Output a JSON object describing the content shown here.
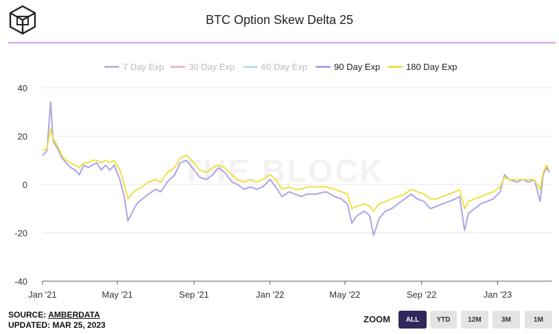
{
  "page": {
    "title": "BTC Option Skew Delta 25",
    "source_prefix": "SOURCE: ",
    "source_name": "AMBERDATA",
    "updated": "UPDATED: MAR 25, 2023",
    "watermark": "THE BLOCK"
  },
  "zoom": {
    "label": "ZOOM",
    "buttons": [
      "ALL",
      "YTD",
      "12M",
      "3M",
      "1M"
    ],
    "active": "ALL"
  },
  "chart_data": {
    "type": "line",
    "title": "BTC Option Skew Delta 25",
    "ylim": [
      -40,
      40
    ],
    "y_ticks": [
      40,
      20,
      0,
      -20,
      -40
    ],
    "xlim": [
      "2021-01-01",
      "2023-03-25"
    ],
    "x_ticks": [
      {
        "date": "2021-01-01",
        "label": "Jan '21"
      },
      {
        "date": "2021-05-01",
        "label": "May '21"
      },
      {
        "date": "2021-09-01",
        "label": "Sep '21"
      },
      {
        "date": "2022-01-01",
        "label": "Jan '22"
      },
      {
        "date": "2022-05-01",
        "label": "May '22"
      },
      {
        "date": "2022-09-01",
        "label": "Sep '22"
      },
      {
        "date": "2023-01-01",
        "label": "Jan '23"
      }
    ],
    "grid": true,
    "legend_position": "top",
    "series": [
      {
        "name": "7 Day Exp",
        "color": "#bcb8d4",
        "visible": false,
        "values": []
      },
      {
        "name": "30 Day Exp",
        "color": "#f4b8c8",
        "visible": false,
        "values": []
      },
      {
        "name": "60 Day Exp",
        "color": "#b8e2e6",
        "visible": false,
        "values": []
      },
      {
        "name": "90 Day Exp",
        "color": "#aaa4e4",
        "visible": true,
        "values": [
          [
            "2021-01-01",
            12
          ],
          [
            "2021-01-08",
            14
          ],
          [
            "2021-01-14",
            34
          ],
          [
            "2021-01-18",
            18
          ],
          [
            "2021-01-25",
            15
          ],
          [
            "2021-02-01",
            11
          ],
          [
            "2021-02-08",
            9
          ],
          [
            "2021-02-15",
            7
          ],
          [
            "2021-02-22",
            6
          ],
          [
            "2021-03-01",
            4
          ],
          [
            "2021-03-08",
            8
          ],
          [
            "2021-03-15",
            7
          ],
          [
            "2021-03-22",
            8
          ],
          [
            "2021-03-29",
            9
          ],
          [
            "2021-04-05",
            6
          ],
          [
            "2021-04-12",
            8
          ],
          [
            "2021-04-19",
            6
          ],
          [
            "2021-04-26",
            8
          ],
          [
            "2021-05-05",
            2
          ],
          [
            "2021-05-12",
            -5
          ],
          [
            "2021-05-18",
            -15
          ],
          [
            "2021-05-24",
            -12
          ],
          [
            "2021-06-01",
            -8
          ],
          [
            "2021-06-10",
            -6
          ],
          [
            "2021-06-20",
            -4
          ],
          [
            "2021-07-01",
            -2
          ],
          [
            "2021-07-10",
            -3
          ],
          [
            "2021-07-20",
            1
          ],
          [
            "2021-08-01",
            4
          ],
          [
            "2021-08-10",
            9
          ],
          [
            "2021-08-20",
            10
          ],
          [
            "2021-09-01",
            6
          ],
          [
            "2021-09-10",
            3
          ],
          [
            "2021-09-20",
            2
          ],
          [
            "2021-10-01",
            4
          ],
          [
            "2021-10-10",
            7
          ],
          [
            "2021-10-20",
            5
          ],
          [
            "2021-11-01",
            1
          ],
          [
            "2021-11-10",
            0
          ],
          [
            "2021-11-20",
            -2
          ],
          [
            "2021-12-01",
            -1
          ],
          [
            "2021-12-10",
            -2
          ],
          [
            "2021-12-20",
            -1
          ],
          [
            "2022-01-01",
            2
          ],
          [
            "2022-01-10",
            -1
          ],
          [
            "2022-01-20",
            -5
          ],
          [
            "2022-02-01",
            -3
          ],
          [
            "2022-02-10",
            -4
          ],
          [
            "2022-02-20",
            -5
          ],
          [
            "2022-03-01",
            -4
          ],
          [
            "2022-03-15",
            -4
          ],
          [
            "2022-04-01",
            -3
          ],
          [
            "2022-04-15",
            -5
          ],
          [
            "2022-04-25",
            -6
          ],
          [
            "2022-05-05",
            -8
          ],
          [
            "2022-05-12",
            -16
          ],
          [
            "2022-05-20",
            -13
          ],
          [
            "2022-06-01",
            -11
          ],
          [
            "2022-06-10",
            -13
          ],
          [
            "2022-06-16",
            -21
          ],
          [
            "2022-06-25",
            -14
          ],
          [
            "2022-07-05",
            -11
          ],
          [
            "2022-07-15",
            -10
          ],
          [
            "2022-07-25",
            -8
          ],
          [
            "2022-08-05",
            -6
          ],
          [
            "2022-08-15",
            -4
          ],
          [
            "2022-08-25",
            -6
          ],
          [
            "2022-09-05",
            -7
          ],
          [
            "2022-09-15",
            -10
          ],
          [
            "2022-09-25",
            -9
          ],
          [
            "2022-10-05",
            -8
          ],
          [
            "2022-10-15",
            -7
          ],
          [
            "2022-10-25",
            -6
          ],
          [
            "2022-11-01",
            -5
          ],
          [
            "2022-11-09",
            -19
          ],
          [
            "2022-11-15",
            -12
          ],
          [
            "2022-11-25",
            -10
          ],
          [
            "2022-12-05",
            -8
          ],
          [
            "2022-12-15",
            -7
          ],
          [
            "2022-12-25",
            -6
          ],
          [
            "2023-01-05",
            -3
          ],
          [
            "2023-01-12",
            4
          ],
          [
            "2023-01-20",
            2
          ],
          [
            "2023-02-01",
            1
          ],
          [
            "2023-02-10",
            2
          ],
          [
            "2023-02-20",
            1
          ],
          [
            "2023-03-01",
            2
          ],
          [
            "2023-03-10",
            -7
          ],
          [
            "2023-03-15",
            4
          ],
          [
            "2023-03-20",
            7
          ],
          [
            "2023-03-25",
            5
          ]
        ]
      },
      {
        "name": "180 Day Exp",
        "color": "#f0e040",
        "visible": true,
        "values": [
          [
            "2021-01-01",
            14
          ],
          [
            "2021-01-08",
            15
          ],
          [
            "2021-01-14",
            23
          ],
          [
            "2021-01-18",
            19
          ],
          [
            "2021-01-25",
            16
          ],
          [
            "2021-02-01",
            12
          ],
          [
            "2021-02-08",
            10
          ],
          [
            "2021-02-15",
            9
          ],
          [
            "2021-02-22",
            8
          ],
          [
            "2021-03-01",
            7
          ],
          [
            "2021-03-08",
            9
          ],
          [
            "2021-03-15",
            9
          ],
          [
            "2021-03-22",
            10
          ],
          [
            "2021-03-29",
            10
          ],
          [
            "2021-04-05",
            9
          ],
          [
            "2021-04-12",
            10
          ],
          [
            "2021-04-19",
            9
          ],
          [
            "2021-04-26",
            10
          ],
          [
            "2021-05-05",
            6
          ],
          [
            "2021-05-12",
            0
          ],
          [
            "2021-05-18",
            -6
          ],
          [
            "2021-05-24",
            -4
          ],
          [
            "2021-06-01",
            -2
          ],
          [
            "2021-06-10",
            -1
          ],
          [
            "2021-06-20",
            1
          ],
          [
            "2021-07-01",
            2
          ],
          [
            "2021-07-10",
            1
          ],
          [
            "2021-07-20",
            5
          ],
          [
            "2021-08-01",
            7
          ],
          [
            "2021-08-10",
            11
          ],
          [
            "2021-08-20",
            12
          ],
          [
            "2021-09-01",
            9
          ],
          [
            "2021-09-10",
            6
          ],
          [
            "2021-09-20",
            5
          ],
          [
            "2021-10-01",
            7
          ],
          [
            "2021-10-10",
            8
          ],
          [
            "2021-10-20",
            7
          ],
          [
            "2021-11-01",
            4
          ],
          [
            "2021-11-10",
            2
          ],
          [
            "2021-11-20",
            1
          ],
          [
            "2021-12-01",
            2
          ],
          [
            "2021-12-10",
            1
          ],
          [
            "2021-12-20",
            2
          ],
          [
            "2022-01-01",
            4
          ],
          [
            "2022-01-10",
            2
          ],
          [
            "2022-01-20",
            -2
          ],
          [
            "2022-02-01",
            -1
          ],
          [
            "2022-02-10",
            -2
          ],
          [
            "2022-02-20",
            -2
          ],
          [
            "2022-03-01",
            -1
          ],
          [
            "2022-03-15",
            -1
          ],
          [
            "2022-04-01",
            -1
          ],
          [
            "2022-04-15",
            -2
          ],
          [
            "2022-04-25",
            -3
          ],
          [
            "2022-05-05",
            -4
          ],
          [
            "2022-05-12",
            -10
          ],
          [
            "2022-05-20",
            -9
          ],
          [
            "2022-06-01",
            -8
          ],
          [
            "2022-06-10",
            -9
          ],
          [
            "2022-06-16",
            -11
          ],
          [
            "2022-06-25",
            -8
          ],
          [
            "2022-07-05",
            -7
          ],
          [
            "2022-07-15",
            -6
          ],
          [
            "2022-07-25",
            -5
          ],
          [
            "2022-08-05",
            -4
          ],
          [
            "2022-08-15",
            -2
          ],
          [
            "2022-08-25",
            -3
          ],
          [
            "2022-09-05",
            -4
          ],
          [
            "2022-09-15",
            -6
          ],
          [
            "2022-09-25",
            -6
          ],
          [
            "2022-10-05",
            -5
          ],
          [
            "2022-10-15",
            -4
          ],
          [
            "2022-10-25",
            -3
          ],
          [
            "2022-11-01",
            -2
          ],
          [
            "2022-11-09",
            -10
          ],
          [
            "2022-11-15",
            -7
          ],
          [
            "2022-11-25",
            -6
          ],
          [
            "2022-12-05",
            -5
          ],
          [
            "2022-12-15",
            -4
          ],
          [
            "2022-12-25",
            -3
          ],
          [
            "2023-01-05",
            -1
          ],
          [
            "2023-01-12",
            3
          ],
          [
            "2023-01-20",
            2
          ],
          [
            "2023-02-01",
            2
          ],
          [
            "2023-02-10",
            2
          ],
          [
            "2023-02-20",
            2
          ],
          [
            "2023-03-01",
            2
          ],
          [
            "2023-03-10",
            -2
          ],
          [
            "2023-03-15",
            5
          ],
          [
            "2023-03-20",
            8
          ],
          [
            "2023-03-25",
            6
          ]
        ]
      }
    ]
  }
}
